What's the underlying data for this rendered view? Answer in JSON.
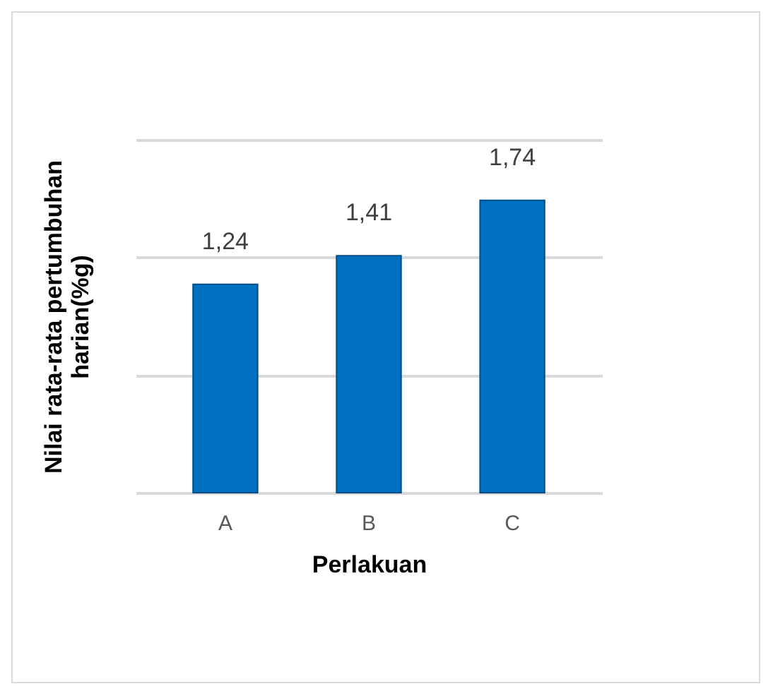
{
  "chart_data": {
    "type": "bar",
    "xlabel": "Perlakuan",
    "ylabel": "Nilai rata-rata pertumbuhan harian(%g)",
    "categories": [
      "A",
      "B",
      "C"
    ],
    "values": [
      1.24,
      1.41,
      1.74
    ],
    "color": "#0070c0",
    "value_labels": [
      "1,24",
      "1,41",
      "1,74"
    ],
    "ylim": [
      0,
      2.1
    ],
    "yticks": [
      {
        "value": 0,
        "label": null
      },
      {
        "value": 0.7,
        "label": null
      },
      {
        "value": 1.4,
        "label": null
      },
      {
        "value": 2.1,
        "label": null
      }
    ],
    "grid": "y",
    "tick_labels": "x"
  }
}
